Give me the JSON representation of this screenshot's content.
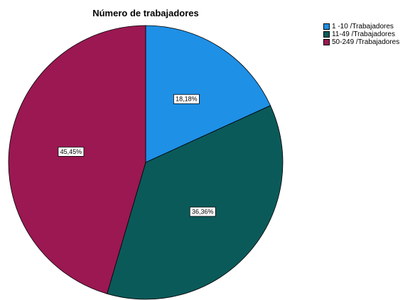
{
  "chart_data": {
    "type": "pie",
    "title": "Número de trabajadores",
    "legend_position": "top-right",
    "slices": [
      {
        "name": "1 -10 /Trabajadores",
        "value": 18.18,
        "label": "18,18%",
        "color": "#1e90e6"
      },
      {
        "name": "11-49 /Trabajadores",
        "value": 36.36,
        "label": "36,36%",
        "color": "#0b5a5a"
      },
      {
        "name": "50-249 /Trabajadores",
        "value": 45.45,
        "label": "45,45%",
        "color": "#9b1852"
      }
    ]
  }
}
